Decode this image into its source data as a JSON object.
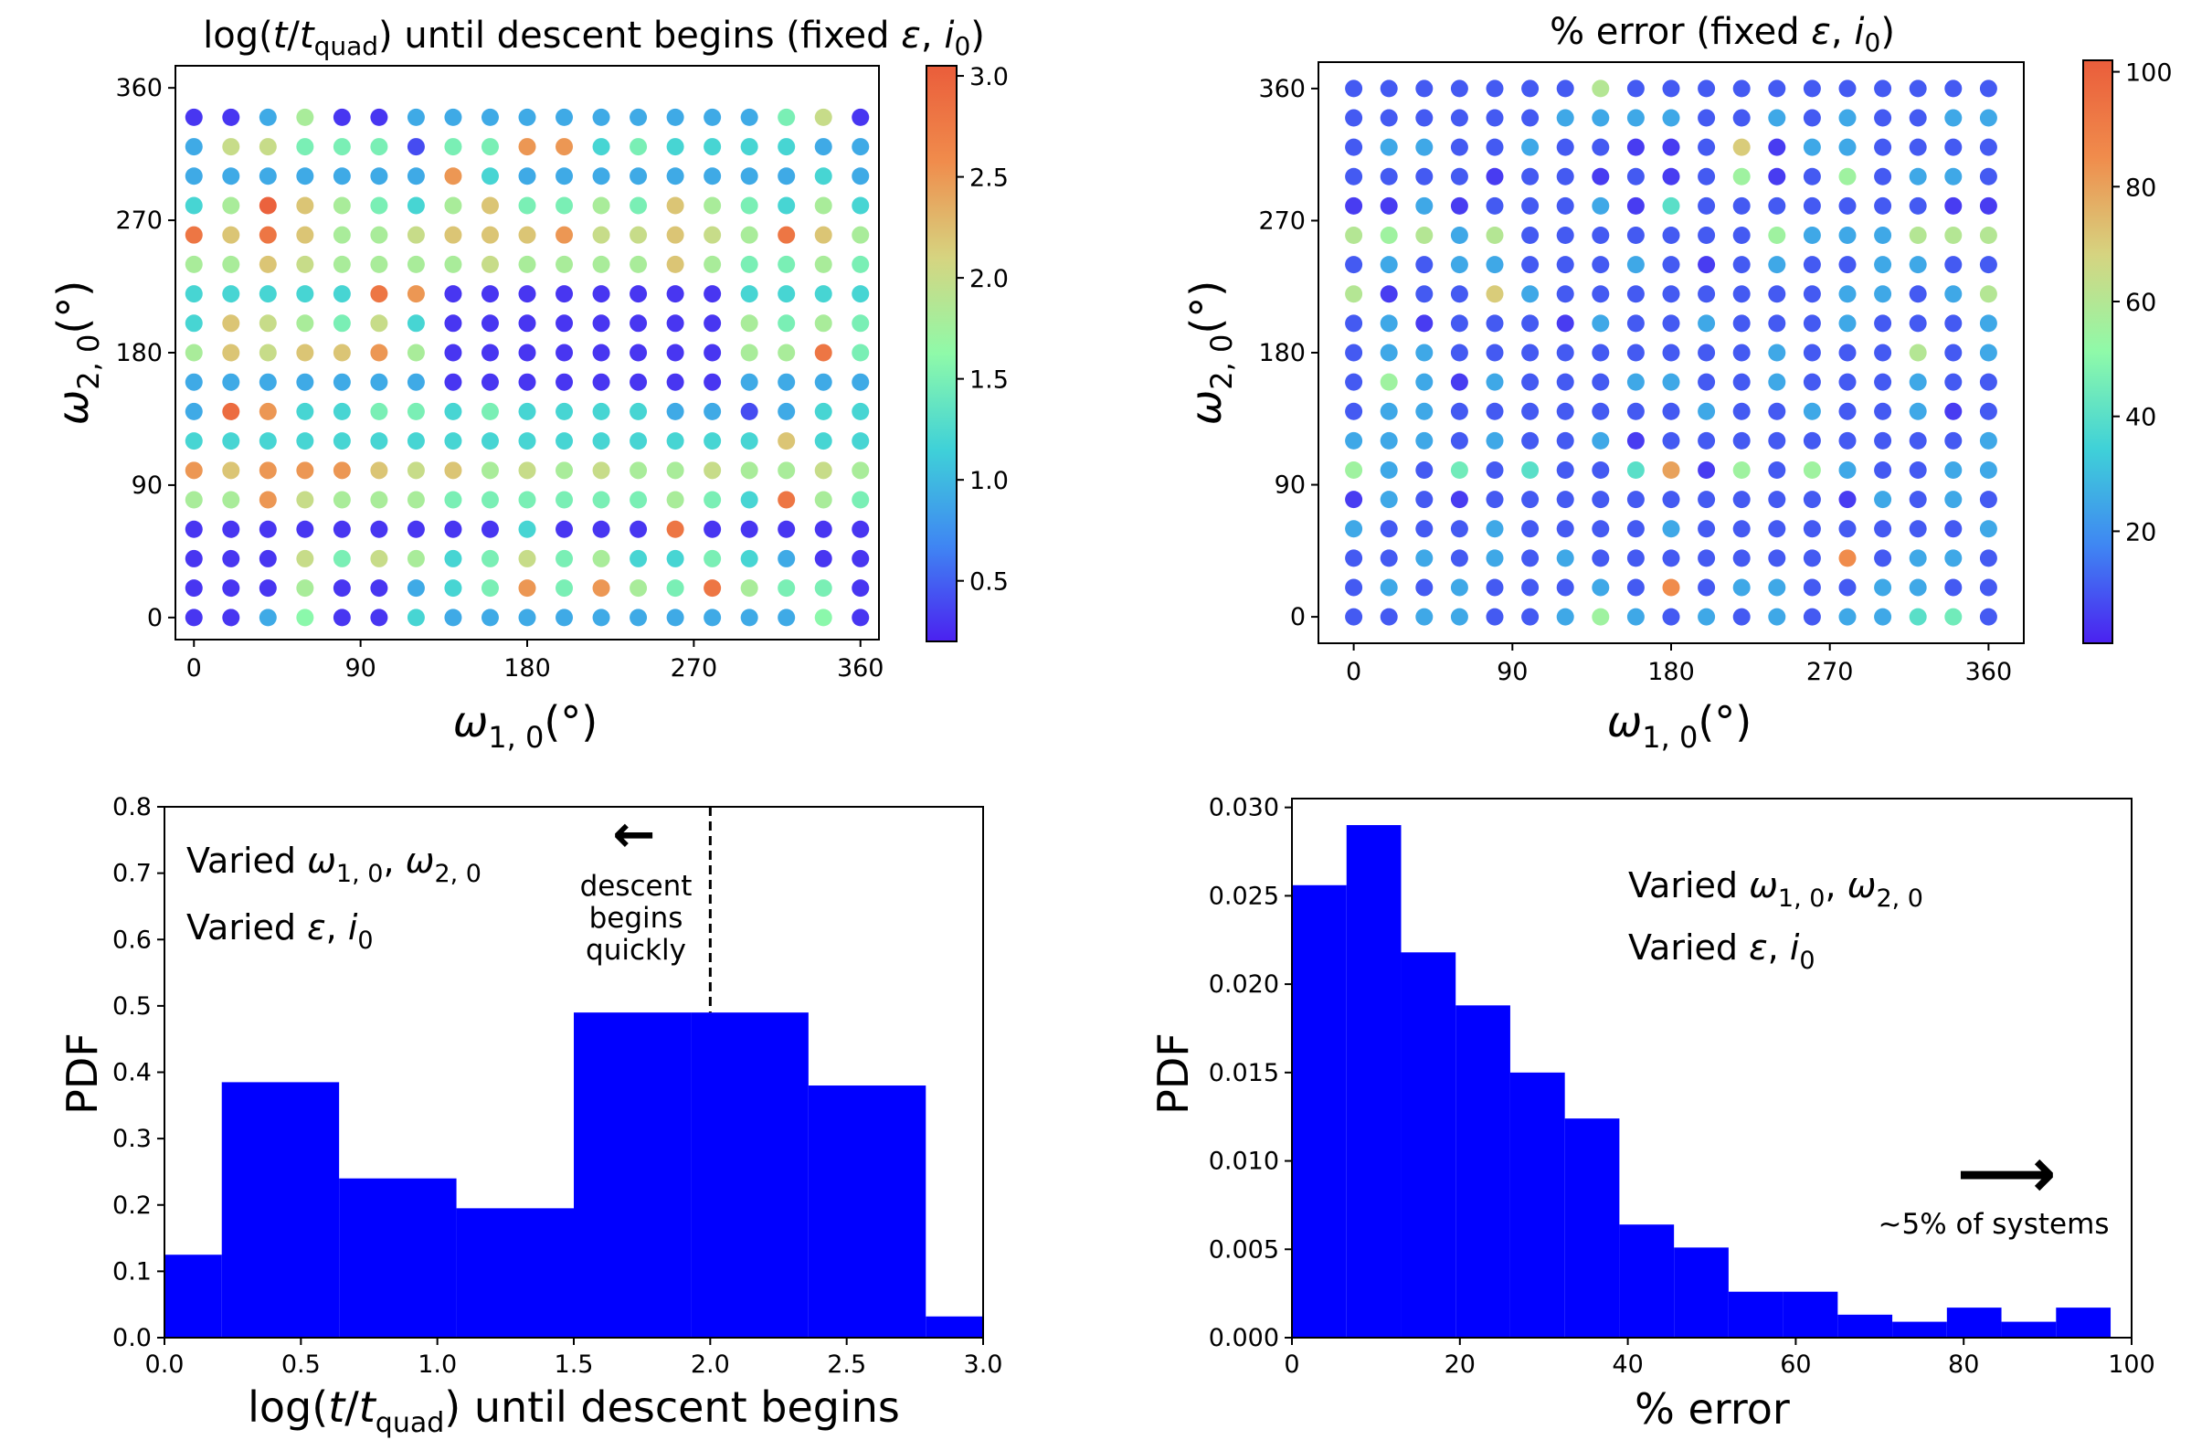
{
  "colors": {
    "bar": "#0000ff",
    "axis": "#000000",
    "cmap": [
      "#4b21f0",
      "#3f86f3",
      "#3fd1d8",
      "#8ffaa9",
      "#d6d480",
      "#f08c4c",
      "#ea5d3b"
    ]
  },
  "chart_data": [
    {
      "type": "scatter",
      "title": {
        "prefix": "log(",
        "t": "t",
        "slash": "/",
        "tq": "t",
        "sub": "quad",
        "suffix": ") until descent begins (fixed ",
        "eps": "ε",
        "comma": ", ",
        "i": "i",
        "isub": "0",
        "close": ")"
      },
      "xlabel": {
        "omega": "ω",
        "sub": "1, 0",
        "deg": "(°)"
      },
      "ylabel": {
        "omega": "ω",
        "sub": "2, 0",
        "deg": "(°)"
      },
      "xlim": [
        -10,
        370
      ],
      "ylim": [
        -15,
        375
      ],
      "xticks": [
        "0",
        "90",
        "180",
        "270",
        "360"
      ],
      "yticks": [
        "0",
        "90",
        "180",
        "270",
        "360"
      ],
      "grid_step": 20,
      "colorbar": {
        "min": 0.2,
        "max": 3.05,
        "ticks": [
          "0.5",
          "1.0",
          "1.5",
          "2.0",
          "2.5",
          "3.0"
        ],
        "tick_values": [
          0.5,
          1.0,
          1.5,
          2.0,
          2.5,
          3.0
        ]
      },
      "grid_values": [
        [
          0.3,
          0.3,
          0.9,
          1.6,
          0.3,
          0.3,
          1.2,
          0.9,
          0.9,
          0.9,
          0.9,
          0.9,
          0.9,
          0.9,
          0.9,
          0.9,
          0.9,
          1.6,
          0.3
        ],
        [
          0.3,
          0.3,
          0.3,
          1.8,
          0.3,
          0.3,
          0.9,
          1.2,
          1.5,
          2.5,
          1.5,
          2.5,
          1.8,
          1.5,
          2.8,
          1.8,
          1.5,
          1.5,
          0.3
        ],
        [
          0.3,
          0.3,
          0.3,
          2.0,
          1.5,
          2.0,
          1.8,
          1.2,
          1.5,
          2.0,
          1.5,
          1.8,
          1.2,
          1.2,
          1.5,
          1.2,
          0.9,
          0.3,
          0.3
        ],
        [
          0.3,
          0.3,
          0.3,
          0.3,
          0.3,
          0.3,
          0.3,
          0.3,
          0.3,
          1.2,
          0.3,
          0.3,
          0.3,
          2.8,
          0.3,
          0.3,
          0.3,
          0.3,
          0.3
        ],
        [
          1.8,
          1.8,
          2.5,
          2.0,
          1.8,
          1.8,
          1.8,
          1.5,
          1.5,
          1.5,
          1.5,
          1.5,
          1.5,
          1.8,
          1.5,
          1.2,
          2.8,
          1.8,
          1.5
        ],
        [
          2.5,
          2.2,
          2.5,
          2.5,
          2.5,
          2.2,
          2.0,
          2.2,
          1.8,
          2.0,
          1.8,
          2.0,
          1.8,
          1.8,
          2.0,
          1.8,
          1.8,
          2.0,
          1.8
        ],
        [
          1.2,
          1.2,
          1.2,
          1.2,
          1.2,
          1.2,
          1.2,
          1.2,
          1.2,
          1.2,
          1.2,
          1.2,
          1.2,
          1.2,
          1.2,
          1.2,
          2.2,
          1.2,
          1.2
        ],
        [
          0.9,
          2.9,
          2.5,
          1.2,
          1.2,
          1.5,
          1.5,
          1.2,
          1.5,
          1.2,
          1.2,
          1.2,
          1.2,
          0.9,
          0.9,
          0.4,
          0.9,
          1.2,
          1.2
        ],
        [
          0.9,
          0.9,
          0.9,
          0.9,
          0.9,
          0.9,
          0.9,
          0.3,
          0.3,
          0.3,
          0.3,
          0.3,
          0.3,
          0.3,
          0.3,
          0.9,
          0.9,
          0.9,
          0.9
        ],
        [
          1.8,
          2.2,
          2.0,
          2.2,
          2.2,
          2.5,
          1.8,
          0.3,
          0.3,
          0.3,
          0.3,
          0.3,
          0.3,
          0.3,
          0.3,
          1.8,
          1.8,
          2.8,
          1.5
        ],
        [
          1.2,
          2.2,
          2.0,
          1.8,
          1.5,
          2.0,
          1.2,
          0.3,
          0.3,
          0.3,
          0.3,
          0.3,
          0.3,
          0.3,
          0.3,
          1.8,
          1.5,
          1.8,
          1.5
        ],
        [
          1.2,
          1.2,
          1.2,
          1.2,
          1.2,
          2.8,
          2.5,
          0.3,
          0.3,
          0.3,
          0.3,
          0.3,
          0.3,
          0.3,
          0.3,
          1.2,
          1.2,
          1.2,
          1.2
        ],
        [
          1.8,
          1.8,
          2.2,
          2.0,
          1.8,
          1.8,
          1.8,
          1.8,
          2.0,
          1.8,
          1.8,
          1.8,
          1.8,
          2.2,
          1.8,
          1.5,
          1.5,
          1.8,
          1.5
        ],
        [
          2.8,
          2.2,
          2.8,
          2.2,
          1.8,
          1.8,
          2.0,
          2.2,
          2.2,
          2.2,
          2.5,
          2.0,
          2.0,
          2.2,
          2.0,
          1.8,
          2.8,
          2.2,
          1.8
        ],
        [
          1.2,
          1.8,
          3.0,
          2.2,
          1.8,
          1.5,
          1.2,
          1.8,
          2.2,
          1.5,
          1.5,
          1.8,
          1.5,
          2.2,
          1.8,
          1.5,
          1.2,
          1.8,
          1.2
        ],
        [
          0.9,
          0.9,
          0.9,
          0.9,
          0.9,
          0.9,
          0.9,
          2.5,
          1.2,
          0.9,
          0.9,
          0.9,
          0.9,
          0.9,
          0.9,
          0.9,
          0.9,
          1.2,
          0.9
        ],
        [
          0.9,
          2.0,
          2.0,
          1.5,
          1.5,
          1.5,
          0.4,
          1.5,
          1.5,
          2.5,
          2.5,
          1.2,
          1.5,
          1.2,
          1.2,
          1.2,
          1.2,
          0.9,
          0.9
        ],
        [
          0.3,
          0.3,
          0.9,
          1.8,
          0.3,
          0.3,
          0.9,
          0.9,
          0.9,
          0.9,
          0.9,
          0.9,
          0.9,
          0.9,
          0.9,
          0.9,
          1.5,
          2.0,
          0.3
        ]
      ]
    },
    {
      "type": "scatter",
      "title": {
        "prefix": "% error (fixed ",
        "eps": "ε",
        "comma": ", ",
        "i": "i",
        "isub": "0",
        "close": ")"
      },
      "xlabel": {
        "omega": "ω",
        "sub": "1, 0",
        "deg": "(°)"
      },
      "ylabel": {
        "omega": "ω",
        "sub": "2, 0",
        "deg": "(°)"
      },
      "xlim": [
        -20,
        380
      ],
      "ylim": [
        -18,
        378
      ],
      "xticks": [
        "0",
        "90",
        "180",
        "270",
        "360"
      ],
      "yticks": [
        "0",
        "90",
        "180",
        "270",
        "360"
      ],
      "grid_step": 20,
      "colorbar": {
        "min": 0.5,
        "max": 102,
        "ticks": [
          "20",
          "40",
          "60",
          "80",
          "100"
        ],
        "tick_values": [
          20,
          40,
          60,
          80,
          100
        ]
      },
      "grid_values": [
        [
          10,
          10,
          25,
          25,
          10,
          10,
          25,
          55,
          25,
          10,
          25,
          10,
          25,
          10,
          25,
          25,
          40,
          45,
          10
        ],
        [
          10,
          25,
          10,
          25,
          10,
          10,
          10,
          25,
          10,
          85,
          10,
          25,
          25,
          10,
          10,
          25,
          25,
          10,
          10
        ],
        [
          10,
          10,
          25,
          10,
          25,
          10,
          25,
          10,
          10,
          10,
          10,
          10,
          10,
          10,
          85,
          10,
          25,
          25,
          10
        ],
        [
          25,
          10,
          10,
          10,
          25,
          10,
          10,
          10,
          10,
          25,
          10,
          10,
          10,
          10,
          10,
          10,
          10,
          10,
          25
        ],
        [
          5,
          25,
          10,
          5,
          10,
          10,
          10,
          10,
          10,
          10,
          10,
          10,
          10,
          10,
          5,
          25,
          10,
          25,
          10
        ],
        [
          55,
          25,
          10,
          45,
          10,
          40,
          10,
          10,
          40,
          80,
          5,
          55,
          10,
          55,
          25,
          10,
          10,
          25,
          25
        ],
        [
          25,
          25,
          25,
          10,
          25,
          10,
          10,
          25,
          5,
          10,
          10,
          10,
          10,
          10,
          10,
          10,
          10,
          10,
          25
        ],
        [
          10,
          25,
          25,
          10,
          10,
          10,
          10,
          10,
          10,
          10,
          25,
          10,
          10,
          25,
          10,
          10,
          25,
          5,
          10
        ],
        [
          10,
          55,
          25,
          5,
          25,
          10,
          10,
          10,
          25,
          25,
          10,
          10,
          25,
          10,
          10,
          10,
          25,
          10,
          10
        ],
        [
          10,
          25,
          25,
          10,
          10,
          10,
          10,
          10,
          10,
          10,
          10,
          10,
          25,
          10,
          10,
          10,
          60,
          10,
          25
        ],
        [
          10,
          25,
          5,
          10,
          10,
          10,
          5,
          25,
          10,
          10,
          25,
          10,
          10,
          10,
          25,
          10,
          10,
          10,
          25
        ],
        [
          60,
          5,
          10,
          10,
          70,
          25,
          10,
          10,
          10,
          10,
          10,
          10,
          10,
          10,
          25,
          25,
          10,
          25,
          60
        ],
        [
          10,
          25,
          10,
          25,
          25,
          10,
          10,
          10,
          25,
          10,
          5,
          10,
          25,
          10,
          10,
          25,
          25,
          10,
          10
        ],
        [
          60,
          55,
          60,
          25,
          60,
          10,
          10,
          10,
          10,
          10,
          10,
          10,
          55,
          25,
          25,
          25,
          60,
          60,
          60
        ],
        [
          5,
          5,
          25,
          5,
          10,
          10,
          10,
          25,
          5,
          40,
          10,
          10,
          10,
          10,
          10,
          10,
          10,
          5,
          5
        ],
        [
          10,
          10,
          10,
          10,
          5,
          10,
          10,
          5,
          10,
          5,
          10,
          55,
          5,
          10,
          55,
          10,
          25,
          25,
          10
        ],
        [
          10,
          25,
          25,
          10,
          10,
          25,
          10,
          10,
          5,
          5,
          10,
          70,
          5,
          25,
          25,
          10,
          10,
          10,
          10
        ],
        [
          10,
          10,
          10,
          10,
          10,
          10,
          25,
          25,
          25,
          25,
          10,
          10,
          25,
          10,
          25,
          10,
          10,
          25,
          25
        ],
        [
          10,
          10,
          10,
          10,
          10,
          10,
          10,
          60,
          10,
          10,
          10,
          10,
          10,
          10,
          10,
          10,
          10,
          10,
          10
        ]
      ]
    },
    {
      "type": "bar",
      "xlabel": {
        "prefix": "log(",
        "t": "t",
        "slash": "/",
        "tq": "t",
        "sub": "quad",
        "suffix": ") until descent begins"
      },
      "ylabel": "PDF",
      "xlim": [
        0,
        3.0
      ],
      "ylim": [
        0,
        0.8
      ],
      "xticks": [
        0.0,
        0.5,
        1.0,
        1.5,
        2.0,
        2.5,
        3.0
      ],
      "xtick_labels": [
        "0.0",
        "0.5",
        "1.0",
        "1.5",
        "2.0",
        "2.5",
        "3.0"
      ],
      "yticks": [
        0.0,
        0.1,
        0.2,
        0.3,
        0.4,
        0.5,
        0.6,
        0.7,
        0.8
      ],
      "ytick_labels": [
        "0.0",
        "0.1",
        "0.2",
        "0.3",
        "0.4",
        "0.5",
        "0.6",
        "0.7",
        "0.8"
      ],
      "bin_edges": [
        0.0,
        0.21,
        0.64,
        1.07,
        1.5,
        1.93,
        2.36,
        2.79,
        3.0
      ],
      "values": [
        0.125,
        0.385,
        0.24,
        0.195,
        0.49,
        0.49,
        0.38,
        0.032
      ],
      "vline_x": 2.0,
      "vline_range": [
        0.49,
        0.8
      ],
      "annotation": {
        "arrow": "←",
        "lines": [
          "descent",
          "begins",
          "quickly"
        ]
      },
      "legend": {
        "line1": {
          "text": "Varied ",
          "omega1": "ω",
          "sub1": "1, 0",
          "comma": ", ",
          "omega2": "ω",
          "sub2": "2, 0"
        },
        "line2": {
          "text": "Varied ",
          "eps": "ε",
          "comma": ", ",
          "i": "i",
          "isub": "0"
        }
      }
    },
    {
      "type": "bar",
      "xlabel": "% error",
      "ylabel": "PDF",
      "xlim": [
        0,
        100
      ],
      "ylim": [
        0,
        0.0305
      ],
      "xticks": [
        0,
        20,
        40,
        60,
        80,
        100
      ],
      "xtick_labels": [
        "0",
        "20",
        "40",
        "60",
        "80",
        "100"
      ],
      "yticks": [
        0,
        0.005,
        0.01,
        0.015,
        0.02,
        0.025,
        0.03
      ],
      "ytick_labels": [
        "0.000",
        "0.005",
        "0.010",
        "0.015",
        "0.020",
        "0.025",
        "0.030"
      ],
      "bin_edges": [
        0,
        6.5,
        13,
        19.5,
        26,
        32.5,
        39,
        45.5,
        52,
        58.5,
        65,
        71.5,
        78,
        84.5,
        91,
        97.5
      ],
      "values": [
        0.0256,
        0.029,
        0.0218,
        0.0188,
        0.015,
        0.0124,
        0.0064,
        0.0051,
        0.0026,
        0.0026,
        0.0013,
        0.0009,
        0.0017,
        0.0009,
        0.0017
      ],
      "annotation": {
        "arrow": "⟶",
        "text": "~5% of systems"
      },
      "legend": {
        "line1": {
          "text": "Varied ",
          "omega1": "ω",
          "sub1": "1, 0",
          "comma": ", ",
          "omega2": "ω",
          "sub2": "2, 0"
        },
        "line2": {
          "text": "Varied ",
          "eps": "ε",
          "comma": ", ",
          "i": "i",
          "isub": "0"
        }
      }
    }
  ]
}
